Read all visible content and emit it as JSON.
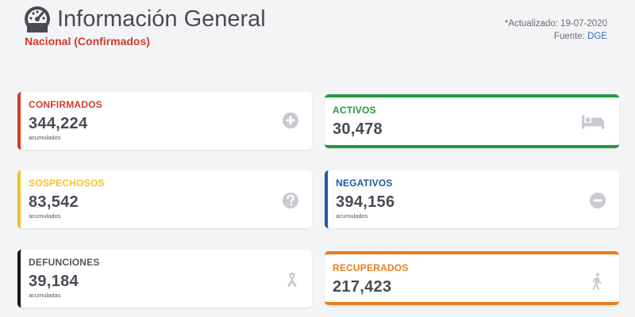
{
  "header": {
    "title": "Información General",
    "subtitle": "Nacional (Confirmados)",
    "updated": "*Actualizado: 19-07-2020",
    "source_label": "Fuente:",
    "source_value": "DGE"
  },
  "cards": {
    "confirmados": {
      "label": "CONFIRMADOS",
      "value": "344,224",
      "note": "acumulados",
      "color": "#d23a2a",
      "icon": "plus-circle-icon"
    },
    "activos": {
      "label": "ACTIVOS",
      "value": "30,478",
      "color": "#1f9a3f",
      "icon": "bed-icon"
    },
    "sospechosos": {
      "label": "SOSPECHOSOS",
      "value": "83,542",
      "note": "acumulados",
      "color": "#f2c12e",
      "icon": "question-circle-icon"
    },
    "negativos": {
      "label": "NEGATIVOS",
      "value": "394,156",
      "note": "acumulados",
      "color": "#1d5aa3",
      "icon": "minus-circle-icon"
    },
    "defunciones": {
      "label": "DEFUNCIONES",
      "value": "39,184",
      "note": "acumuladas",
      "color": "#1a1a1a",
      "icon": "ribbon-icon"
    },
    "recuperados": {
      "label": "RECUPERADOS",
      "value": "217,423",
      "color": "#ea7d1c",
      "icon": "walking-person-icon"
    }
  }
}
